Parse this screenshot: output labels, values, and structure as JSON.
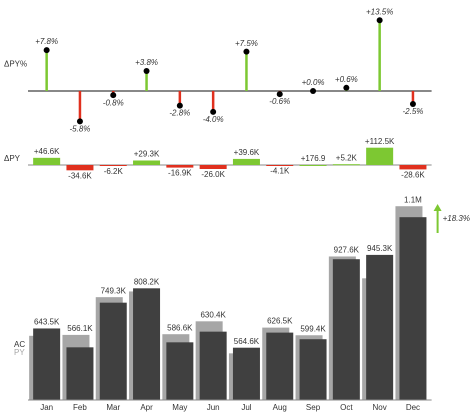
{
  "chart_data": [
    {
      "type": "lollipop",
      "label": "ΔPY%",
      "values": [
        7.8,
        -5.8,
        -0.8,
        3.8,
        -2.8,
        -4.0,
        7.5,
        -0.6,
        0.0,
        0.6,
        13.5,
        -2.5
      ],
      "value_labels": [
        "+7.8%",
        "-5.8%",
        "-0.8%",
        "+3.8%",
        "-2.8%",
        "-4.0%",
        "+7.5%",
        "-0.6%",
        "+0.0%",
        "+0.6%",
        "+13.5%",
        "-2.5%"
      ],
      "ylim": [
        -6.5,
        14.5
      ],
      "colors": {
        "positive": "#7dc832",
        "negative": "#e0301e",
        "zero": "#000000"
      }
    },
    {
      "type": "variance-bar",
      "label": "ΔPY",
      "values": [
        46600,
        -34600,
        -6200,
        29300,
        -16900,
        -26000,
        39600,
        -4100,
        176.9,
        5200,
        112500,
        -28600
      ],
      "value_labels": [
        "+46.6K",
        "-34.6K",
        "-6.2K",
        "+29.3K",
        "-16.9K",
        "-26.0K",
        "+39.6K",
        "-4.1K",
        "+176.9",
        "+5.2K",
        "+112.5K",
        "-28.6K"
      ],
      "ylim": [
        -130000,
        130000
      ],
      "colors": {
        "positive": "#7dc832",
        "negative": "#e0301e"
      }
    },
    {
      "type": "bar",
      "categories": [
        "Jan",
        "Feb",
        "Mar",
        "Apr",
        "May",
        "Jun",
        "Jul",
        "Aug",
        "Sep",
        "Oct",
        "Nov",
        "Dec"
      ],
      "series": [
        {
          "name": "AC",
          "color": "#404040",
          "values": [
            643500,
            566100,
            749300,
            808200,
            586600,
            630400,
            564600,
            626500,
            599400,
            927600,
            945300,
            1100000
          ],
          "value_labels": [
            "643.5K",
            "566.1K",
            "749.3K",
            "808.2K",
            "586.6K",
            "630.4K",
            "564.6K",
            "626.5K",
            "599.4K",
            "927.6K",
            "945.3K",
            "1.1M"
          ]
        },
        {
          "name": "PY",
          "color": "#a6a6a6",
          "values": [
            596900,
            600700,
            755500,
            778900,
            603500,
            656400,
            525000,
            630600,
            599200,
            922400,
            832800,
            1128600
          ]
        }
      ],
      "ylim": [
        350000,
        1150000
      ],
      "annotation": "+18.3%",
      "annotation_color": "#7dc832"
    }
  ]
}
